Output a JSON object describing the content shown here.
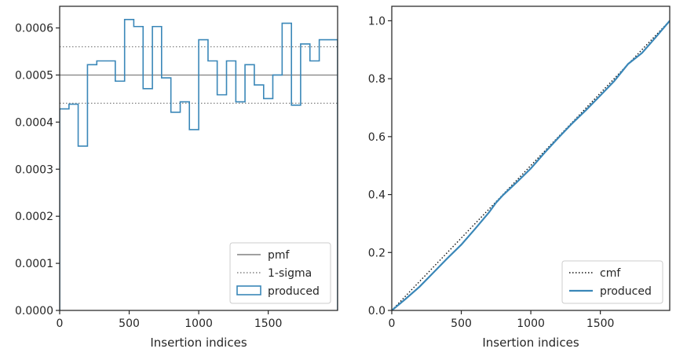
{
  "chart_data": [
    {
      "type": "histogram-step",
      "xlabel": "Insertion indices",
      "ylabel": "",
      "xlim": [
        0,
        1999
      ],
      "ylim": [
        0,
        0.000646
      ],
      "xticks": [
        0,
        500,
        1000,
        1500
      ],
      "xtick_labels": [
        "0",
        "500",
        "1000",
        "1500"
      ],
      "yticks": [
        0,
        0.0001,
        0.0002,
        0.0003,
        0.0004,
        0.0005,
        0.0006
      ],
      "ytick_labels": [
        "0.0000",
        "0.0001",
        "0.0002",
        "0.0003",
        "0.0004",
        "0.0005",
        "0.0006"
      ],
      "bin_edges": [
        0,
        67,
        133,
        200,
        267,
        333,
        400,
        467,
        533,
        600,
        667,
        733,
        800,
        867,
        933,
        1000,
        1067,
        1133,
        1200,
        1267,
        1333,
        1400,
        1467,
        1533,
        1600,
        1667,
        1733,
        1800,
        1867,
        1933,
        1999
      ],
      "series": [
        {
          "name": "produced",
          "kind": "step",
          "color": "#3a87b8",
          "values": [
            0.000428,
            0.000438,
            0.000349,
            0.000522,
            0.00053,
            0.00053,
            0.000487,
            0.000618,
            0.000603,
            0.000471,
            0.000603,
            0.000494,
            0.000421,
            0.000443,
            0.000384,
            0.000575,
            0.00053,
            0.000458,
            0.00053,
            0.000443,
            0.000522,
            0.000479,
            0.00045,
            0.0005,
            0.00061,
            0.000436,
            0.000566,
            0.00053,
            0.000575,
            0.000575
          ]
        }
      ],
      "hlines": [
        {
          "name": "pmf",
          "y": 0.0005,
          "style": "solid",
          "color": "#808080"
        },
        {
          "name": "1-sigma",
          "y": 0.00056,
          "style": "dotted",
          "color": "#808080"
        },
        {
          "name": "",
          "y": 0.00044,
          "style": "dotted",
          "color": "#808080"
        }
      ],
      "legend": {
        "position": "lower-right",
        "entries": [
          "pmf",
          "1-sigma",
          "produced"
        ]
      }
    },
    {
      "type": "line",
      "xlabel": "Insertion indices",
      "ylabel": "",
      "xlim": [
        0,
        1999
      ],
      "ylim": [
        0,
        1.05
      ],
      "xticks": [
        0,
        500,
        1000,
        1500
      ],
      "xtick_labels": [
        "0",
        "500",
        "1000",
        "1500"
      ],
      "yticks": [
        0,
        0.2,
        0.4,
        0.6,
        0.8,
        1.0
      ],
      "ytick_labels": [
        "0.0",
        "0.2",
        "0.4",
        "0.6",
        "0.8",
        "1.0"
      ],
      "series": [
        {
          "name": "cmf",
          "style": "dotted",
          "color": "#111111",
          "x": [
            0,
            1999
          ],
          "y": [
            0,
            1.0
          ]
        },
        {
          "name": "produced",
          "style": "solid",
          "color": "#3a87b8",
          "x": [
            0,
            100,
            200,
            300,
            400,
            500,
            600,
            700,
            750,
            800,
            900,
            1000,
            1100,
            1200,
            1300,
            1400,
            1500,
            1600,
            1700,
            1800,
            1900,
            1999
          ],
          "y": [
            0,
            0.04,
            0.082,
            0.131,
            0.18,
            0.227,
            0.282,
            0.339,
            0.372,
            0.398,
            0.443,
            0.49,
            0.545,
            0.597,
            0.647,
            0.693,
            0.742,
            0.792,
            0.851,
            0.889,
            0.944,
            1.0
          ]
        }
      ],
      "legend": {
        "position": "lower-right",
        "entries": [
          "cmf",
          "produced"
        ]
      }
    }
  ]
}
